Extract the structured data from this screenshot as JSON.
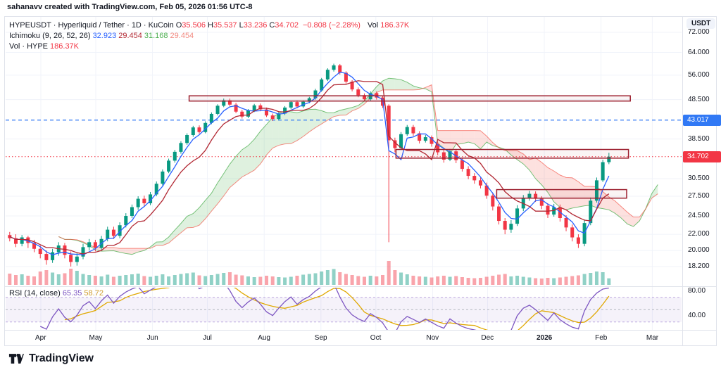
{
  "header": {
    "attribution": "sahanavv created with TradingView.com, Feb 05, 2026 01:56 UTC-8"
  },
  "legend": {
    "symbol": "HYPEUSDT · Hyperliquid / Tether · 1D · KuCoin",
    "ohlc": [
      {
        "l": "O",
        "v": "35.506"
      },
      {
        "l": "H",
        "v": "35.537"
      },
      {
        "l": "L",
        "v": "33.236"
      },
      {
        "l": "C",
        "v": "34.702"
      }
    ],
    "change": "−0.808 (−2.28%)",
    "vol_label": "Vol",
    "vol_value": "186.37K",
    "ichimoku_label": "Ichimoku (9, 26, 52, 26)",
    "ichimoku_values": [
      {
        "v": "32.923",
        "c": "#2962FF"
      },
      {
        "v": "29.454",
        "c": "#B22833"
      },
      {
        "v": "31.168",
        "c": "#4CAF50"
      },
      {
        "v": "29.454",
        "c": "#F28B82"
      }
    ],
    "vol_row_label": "Vol · HYPE",
    "vol_row_value": "186.37K"
  },
  "rsi_legend": {
    "label": "RSI (14, close)",
    "value1": "65.35",
    "value2": "58.72",
    "color1": "#7E57C2",
    "color2": "#CE9B2C"
  },
  "price_axis": {
    "currency": "USDT",
    "labels": [
      "72.000",
      "64.000",
      "56.000",
      "48.500",
      "38.500",
      "30.500",
      "27.500",
      "24.500",
      "22.000",
      "20.000",
      "18.200"
    ],
    "badges": [
      {
        "text": "43.017",
        "price": 43.017,
        "color": "#3179F5"
      },
      {
        "text": "34.702",
        "price": 34.702,
        "color": "#F23645"
      }
    ]
  },
  "rsi_axis": {
    "labels": [
      {
        "text": "80.00",
        "value": 80
      },
      {
        "text": "40.00",
        "value": 40
      }
    ]
  },
  "time_axis": {
    "labels": [
      "Apr",
      "May",
      "Jun",
      "Jul",
      "Aug",
      "Sep",
      "Oct",
      "Nov",
      "Dec",
      "2026",
      "Feb",
      "Mar"
    ],
    "days": [
      0,
      30,
      61,
      91,
      122,
      153,
      183,
      214,
      244,
      275,
      306,
      334
    ]
  },
  "footer": {
    "brand": "TradingView"
  },
  "colors": {
    "up": "#089981",
    "down": "#F23645",
    "tenkan": "#2962FF",
    "kijun": "#B22833",
    "cloud_green": "rgba(76,175,80,0.18)",
    "cloud_red": "rgba(244,67,54,0.16)",
    "span_a_line": "rgba(76,175,80,0.75)",
    "span_b_line": "rgba(244,67,54,0.6)",
    "grid": "#F0F3FA",
    "frame": "#E0E3EB",
    "rsi_line": "#7E57C2",
    "rsi_ma": "#E0A800",
    "rsi_band": "rgba(126,87,194,0.08)",
    "rsi_dash": "rgba(126,87,194,0.5)",
    "box_stroke": "#9C1F2E",
    "box_fill": "rgba(156,31,46,0.05)"
  },
  "chart_data": {
    "type": "candlestick",
    "symbol": "HYPEUSDT",
    "exchange": "KuCoin",
    "interval": "1D",
    "price_scale": "log",
    "ylim": [
      18.2,
      72
    ],
    "last": {
      "o": 35.506,
      "h": 35.537,
      "l": 33.236,
      "c": 34.702,
      "change": -0.808,
      "change_pct": -2.28,
      "volume": "186.37K"
    },
    "candle_days": {
      "start": -17,
      "step": 3.34
    },
    "candles": [
      [
        21.9,
        22.3,
        21.1,
        21.5
      ],
      [
        21.5,
        22.0,
        20.4,
        20.8
      ],
      [
        20.8,
        21.9,
        20.5,
        21.6
      ],
      [
        21.6,
        21.8,
        20.3,
        20.9
      ],
      [
        20.9,
        21.3,
        19.8,
        20.2
      ],
      [
        20.2,
        20.6,
        19.1,
        19.6
      ],
      [
        19.6,
        20.0,
        18.4,
        18.9
      ],
      [
        18.9,
        20.2,
        18.6,
        19.8
      ],
      [
        19.8,
        21.0,
        19.4,
        20.6
      ],
      [
        20.6,
        20.9,
        19.1,
        19.5
      ],
      [
        19.5,
        19.9,
        18.2,
        18.7
      ],
      [
        18.7,
        19.7,
        18.3,
        19.3
      ],
      [
        19.3,
        20.8,
        19.0,
        20.4
      ],
      [
        20.4,
        21.4,
        20.0,
        21.0
      ],
      [
        21.0,
        21.3,
        19.9,
        20.3
      ],
      [
        20.3,
        21.8,
        20.0,
        21.4
      ],
      [
        21.4,
        23.0,
        21.1,
        22.6
      ],
      [
        22.6,
        23.0,
        21.4,
        21.8
      ],
      [
        21.8,
        23.6,
        21.5,
        23.2
      ],
      [
        23.2,
        24.9,
        22.9,
        24.5
      ],
      [
        24.5,
        26.2,
        24.2,
        25.8
      ],
      [
        25.8,
        27.5,
        25.4,
        27.1
      ],
      [
        27.1,
        27.6,
        26.0,
        26.4
      ],
      [
        26.4,
        28.2,
        26.1,
        27.8
      ],
      [
        27.8,
        30.0,
        27.5,
        29.6
      ],
      [
        29.6,
        32.2,
        29.3,
        31.8
      ],
      [
        31.8,
        34.3,
        31.5,
        33.9
      ],
      [
        33.9,
        36.1,
        33.5,
        35.7
      ],
      [
        35.7,
        38.0,
        35.3,
        37.6
      ],
      [
        37.6,
        39.8,
        37.2,
        39.4
      ],
      [
        39.4,
        41.6,
        39.0,
        41.2
      ],
      [
        41.2,
        41.7,
        39.7,
        40.1
      ],
      [
        40.1,
        42.7,
        39.8,
        42.3
      ],
      [
        42.3,
        45.0,
        42.0,
        44.6
      ],
      [
        44.6,
        47.2,
        44.2,
        46.8
      ],
      [
        46.8,
        48.8,
        46.4,
        48.3
      ],
      [
        48.3,
        48.8,
        46.7,
        47.1
      ],
      [
        47.1,
        47.6,
        44.8,
        45.2
      ],
      [
        45.2,
        45.7,
        43.4,
        43.9
      ],
      [
        43.9,
        45.9,
        43.5,
        45.5
      ],
      [
        45.5,
        47.3,
        45.1,
        46.9
      ],
      [
        46.9,
        47.4,
        45.3,
        45.8
      ],
      [
        45.8,
        46.3,
        43.8,
        44.2
      ],
      [
        44.2,
        44.7,
        42.8,
        43.3
      ],
      [
        43.3,
        45.1,
        43.0,
        44.7
      ],
      [
        44.7,
        46.7,
        44.3,
        46.3
      ],
      [
        46.3,
        48.2,
        45.9,
        47.8
      ],
      [
        47.8,
        48.3,
        46.1,
        46.6
      ],
      [
        46.6,
        48.3,
        46.2,
        47.9
      ],
      [
        47.9,
        49.3,
        47.5,
        48.9
      ],
      [
        48.9,
        51.7,
        48.5,
        51.2
      ],
      [
        51.2,
        55.1,
        50.8,
        54.6
      ],
      [
        54.6,
        58.3,
        54.1,
        57.8
      ],
      [
        57.8,
        59.9,
        57.2,
        59.3
      ],
      [
        59.3,
        59.8,
        56.2,
        56.8
      ],
      [
        56.8,
        57.3,
        53.3,
        53.9
      ],
      [
        53.9,
        54.4,
        50.9,
        51.5
      ],
      [
        51.5,
        52.1,
        49.2,
        49.8
      ],
      [
        49.8,
        50.3,
        48.0,
        48.6
      ],
      [
        48.6,
        50.9,
        48.2,
        50.4
      ],
      [
        50.4,
        50.9,
        48.5,
        49.1
      ],
      [
        49.1,
        49.5,
        46.2,
        46.8
      ],
      [
        46.8,
        47.2,
        21.0,
        38.2
      ],
      [
        38.2,
        38.8,
        35.6,
        36.5
      ],
      [
        36.5,
        40.1,
        36.1,
        39.6
      ],
      [
        39.6,
        41.8,
        39.2,
        41.3
      ],
      [
        41.3,
        41.8,
        39.2,
        39.8
      ],
      [
        39.8,
        40.3,
        37.5,
        38.1
      ],
      [
        38.1,
        39.4,
        37.7,
        38.9
      ],
      [
        38.9,
        39.3,
        36.8,
        37.4
      ],
      [
        37.4,
        37.9,
        35.0,
        35.6
      ],
      [
        35.6,
        36.1,
        33.5,
        34.1
      ],
      [
        34.1,
        36.3,
        33.8,
        35.8
      ],
      [
        35.8,
        36.2,
        33.4,
        34.0
      ],
      [
        34.0,
        34.5,
        31.8,
        32.3
      ],
      [
        32.3,
        32.8,
        30.4,
        31.0
      ],
      [
        31.0,
        31.5,
        29.6,
        30.2
      ],
      [
        30.2,
        30.7,
        28.8,
        29.3
      ],
      [
        29.3,
        29.8,
        27.1,
        27.6
      ],
      [
        27.6,
        28.0,
        25.3,
        25.9
      ],
      [
        25.9,
        26.3,
        23.3,
        23.8
      ],
      [
        23.8,
        24.2,
        22.0,
        22.6
      ],
      [
        22.6,
        23.9,
        22.2,
        23.4
      ],
      [
        23.4,
        26.1,
        23.1,
        25.6
      ],
      [
        25.6,
        27.7,
        25.2,
        27.2
      ],
      [
        27.2,
        28.4,
        26.8,
        27.9
      ],
      [
        27.9,
        28.3,
        26.6,
        27.1
      ],
      [
        27.1,
        27.5,
        25.5,
        26.0
      ],
      [
        26.0,
        26.4,
        24.2,
        24.7
      ],
      [
        24.7,
        26.3,
        24.4,
        25.8
      ],
      [
        25.8,
        26.2,
        23.7,
        24.2
      ],
      [
        24.2,
        24.6,
        22.4,
        22.9
      ],
      [
        22.9,
        23.3,
        21.1,
        21.6
      ],
      [
        21.6,
        22.0,
        20.3,
        20.8
      ],
      [
        20.8,
        24.0,
        20.5,
        23.5
      ],
      [
        23.5,
        27.3,
        23.2,
        26.8
      ],
      [
        26.8,
        30.7,
        26.5,
        30.2
      ],
      [
        30.2,
        34.1,
        29.9,
        33.6
      ],
      [
        33.6,
        35.5,
        33.2,
        34.7
      ]
    ],
    "volumes": [
      320,
      280,
      300,
      260,
      240,
      380,
      420,
      350,
      300,
      330,
      460,
      400,
      310,
      280,
      260,
      240,
      290,
      230,
      260,
      280,
      300,
      320,
      250,
      230,
      260,
      300,
      240,
      280,
      310,
      330,
      350,
      270,
      250,
      280,
      310,
      340,
      360,
      290,
      270,
      240,
      220,
      230,
      260,
      240,
      220,
      210,
      230,
      260,
      290,
      310,
      330,
      380,
      420,
      450,
      360,
      310,
      280,
      250,
      230,
      260,
      240,
      280,
      680,
      420,
      350,
      300,
      260,
      240,
      230,
      210,
      240,
      260,
      230,
      250,
      220,
      200,
      190,
      200,
      230,
      260,
      290,
      310,
      240,
      260,
      230,
      210,
      190,
      180,
      200,
      190,
      210,
      230,
      250,
      270,
      310,
      340,
      380,
      360,
      186
    ],
    "ichimoku": {
      "params": "9, 26, 52, 26",
      "tenkan": 32.923,
      "kijun": 29.454,
      "span_a": 31.168,
      "span_b": 29.454
    },
    "rsi": {
      "params": "14, close",
      "last": 65.35,
      "ma_last": 58.72,
      "upper": 70,
      "mid": 50,
      "lower": 30
    },
    "drawings": {
      "hline_dashed": {
        "price": 43.017
      },
      "current_price_line": {
        "price": 34.702
      },
      "boxes": [
        {
          "x1_day": 81,
          "x2_day": 322,
          "p_top": 49.6,
          "p_bot": 48.1
        },
        {
          "x1_day": 194,
          "x2_day": 321,
          "p_top": 36.2,
          "p_bot": 34.4
        },
        {
          "x1_day": 249,
          "x2_day": 320,
          "p_top": 28.6,
          "p_bot": 27.2
        }
      ]
    }
  }
}
